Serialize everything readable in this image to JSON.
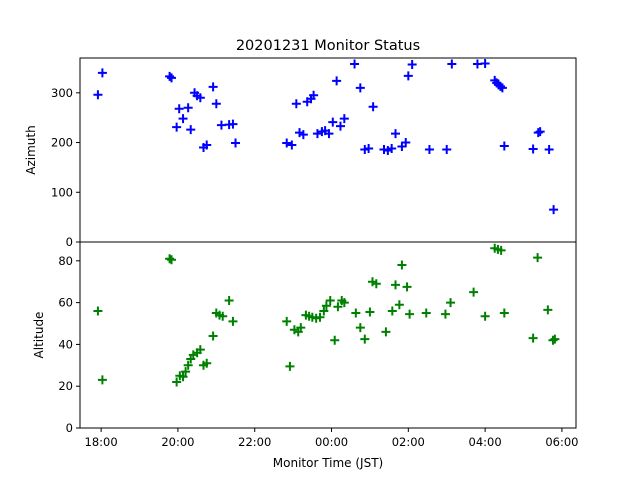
{
  "title": "20201231 Monitor Status",
  "colors": {
    "azimuth": "#0000ff",
    "altitude": "#008000",
    "axis": "#000000"
  },
  "chart_data": [
    {
      "type": "scatter",
      "title": "20201231 Monitor Status",
      "ylabel": "Azimuth",
      "xlim": [
        "17:27",
        "06:22"
      ],
      "ylim": [
        0,
        370
      ],
      "yticks": [
        0,
        100,
        200,
        300
      ],
      "marker": "+",
      "series": [
        {
          "color": "#0000ff",
          "points": [
            [
              "17:55",
              296
            ],
            [
              "18:02",
              340
            ],
            [
              "19:47",
              333
            ],
            [
              "19:50",
              330
            ],
            [
              "19:58",
              231
            ],
            [
              "20:02",
              268
            ],
            [
              "20:08",
              248
            ],
            [
              "20:16",
              270
            ],
            [
              "20:20",
              226
            ],
            [
              "20:26",
              300
            ],
            [
              "20:30",
              294
            ],
            [
              "20:35",
              290
            ],
            [
              "20:40",
              190
            ],
            [
              "20:45",
              195
            ],
            [
              "20:55",
              312
            ],
            [
              "21:00",
              278
            ],
            [
              "21:08",
              235
            ],
            [
              "21:20",
              236
            ],
            [
              "21:26",
              237
            ],
            [
              "21:30",
              199
            ],
            [
              "22:50",
              199
            ],
            [
              "22:58",
              195
            ],
            [
              "23:05",
              278
            ],
            [
              "23:10",
              220
            ],
            [
              "23:16",
              216
            ],
            [
              "23:22",
              282
            ],
            [
              "23:28",
              288
            ],
            [
              "23:32",
              295
            ],
            [
              "23:38",
              218
            ],
            [
              "23:45",
              222
            ],
            [
              "23:50",
              224
            ],
            [
              "23:56",
              218
            ],
            [
              "00:02",
              241
            ],
            [
              "00:08",
              324
            ],
            [
              "00:14",
              233
            ],
            [
              "00:20",
              248
            ],
            [
              "00:36",
              358
            ],
            [
              "00:45",
              310
            ],
            [
              "00:52",
              186
            ],
            [
              "00:58",
              188
            ],
            [
              "01:05",
              272
            ],
            [
              "01:22",
              186
            ],
            [
              "01:28",
              184
            ],
            [
              "01:34",
              188
            ],
            [
              "01:40",
              218
            ],
            [
              "01:50",
              192
            ],
            [
              "01:56",
              200
            ],
            [
              "02:00",
              334
            ],
            [
              "02:06",
              357
            ],
            [
              "02:33",
              186
            ],
            [
              "03:00",
              186
            ],
            [
              "03:08",
              358
            ],
            [
              "03:48",
              358
            ],
            [
              "04:00",
              359
            ],
            [
              "04:15",
              325
            ],
            [
              "04:18",
              320
            ],
            [
              "04:21",
              316
            ],
            [
              "04:24",
              313
            ],
            [
              "04:27",
              310
            ],
            [
              "04:30",
              193
            ],
            [
              "05:15",
              187
            ],
            [
              "05:23",
              220
            ],
            [
              "05:26",
              222
            ],
            [
              "05:40",
              186
            ],
            [
              "05:47",
              65
            ]
          ]
        }
      ]
    },
    {
      "type": "scatter",
      "xlabel": "Monitor Time (JST)",
      "ylabel": "Altitude",
      "xlim": [
        "17:27",
        "06:22"
      ],
      "ylim": [
        0,
        89
      ],
      "yticks": [
        0,
        20,
        40,
        60,
        80
      ],
      "xticks": [
        "18:00",
        "20:00",
        "22:00",
        "00:00",
        "02:00",
        "04:00",
        "06:00"
      ],
      "marker": "+",
      "series": [
        {
          "color": "#008000",
          "points": [
            [
              "17:55",
              56
            ],
            [
              "18:02",
              23
            ],
            [
              "19:47",
              81
            ],
            [
              "19:50",
              80.5
            ],
            [
              "19:58",
              22
            ],
            [
              "20:03",
              25
            ],
            [
              "20:08",
              24.5
            ],
            [
              "20:12",
              27
            ],
            [
              "20:16",
              30
            ],
            [
              "20:20",
              33
            ],
            [
              "20:24",
              35
            ],
            [
              "20:30",
              36
            ],
            [
              "20:35",
              37.5
            ],
            [
              "20:40",
              30
            ],
            [
              "20:45",
              31
            ],
            [
              "20:55",
              44
            ],
            [
              "21:00",
              55
            ],
            [
              "21:05",
              54
            ],
            [
              "21:10",
              53.5
            ],
            [
              "21:20",
              61
            ],
            [
              "21:26",
              51
            ],
            [
              "22:50",
              51
            ],
            [
              "22:55",
              29.5
            ],
            [
              "23:02",
              47
            ],
            [
              "23:08",
              46
            ],
            [
              "23:12",
              48
            ],
            [
              "23:20",
              54
            ],
            [
              "23:25",
              53.5
            ],
            [
              "23:30",
              53
            ],
            [
              "23:36",
              52.5
            ],
            [
              "23:42",
              53
            ],
            [
              "23:48",
              56
            ],
            [
              "23:52",
              58.5
            ],
            [
              "23:58",
              61
            ],
            [
              "00:05",
              42
            ],
            [
              "00:10",
              58
            ],
            [
              "00:16",
              61
            ],
            [
              "00:20",
              60
            ],
            [
              "00:38",
              55
            ],
            [
              "00:45",
              48
            ],
            [
              "00:52",
              42.5
            ],
            [
              "01:00",
              55.5
            ],
            [
              "01:04",
              70
            ],
            [
              "01:10",
              69
            ],
            [
              "01:25",
              46
            ],
            [
              "01:35",
              56
            ],
            [
              "01:40",
              68.5
            ],
            [
              "01:46",
              59
            ],
            [
              "01:50",
              78
            ],
            [
              "01:58",
              67.5
            ],
            [
              "02:02",
              54.5
            ],
            [
              "02:28",
              55
            ],
            [
              "02:58",
              54.5
            ],
            [
              "03:06",
              60
            ],
            [
              "03:42",
              65
            ],
            [
              "04:00",
              53.5
            ],
            [
              "04:15",
              86
            ],
            [
              "04:20",
              85.5
            ],
            [
              "04:25",
              85
            ],
            [
              "04:30",
              55
            ],
            [
              "05:15",
              43
            ],
            [
              "05:22",
              81.5
            ],
            [
              "05:38",
              56.5
            ],
            [
              "05:46",
              42
            ],
            [
              "05:49",
              42.5
            ]
          ]
        }
      ]
    }
  ]
}
